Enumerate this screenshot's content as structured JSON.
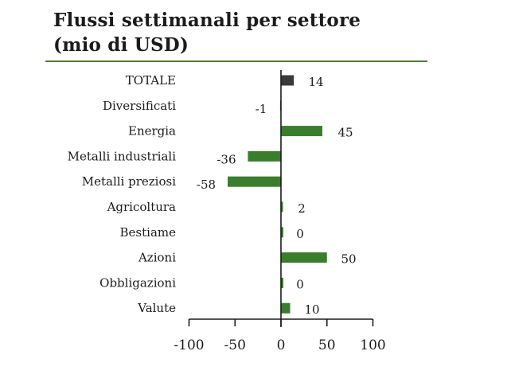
{
  "title_lines": [
    "Flussi settimanali per settore",
    "(mio di USD)"
  ],
  "colors": {
    "positive_bar": "#3a7d2c",
    "negative_bar": "#3a7d2c",
    "total_bar": "#3a3a3a",
    "rule": "#4f7f38",
    "axis": "#1b1b1b"
  },
  "chart_data": {
    "type": "bar",
    "orientation": "horizontal",
    "title": "Flussi settimanali per settore (mio di USD)",
    "categories": [
      "TOTALE",
      "Diversificati",
      "Energia",
      "Metalli industriali",
      "Metalli preziosi",
      "Agricoltura",
      "Bestiame",
      "Azioni",
      "Obbligazioni",
      "Valute"
    ],
    "values": [
      14,
      -1,
      45,
      -36,
      -58,
      2,
      0,
      50,
      0,
      10
    ],
    "value_labels": [
      "14",
      "-1",
      "45",
      "-36",
      "-58",
      "2",
      "0",
      "50",
      "0",
      "10"
    ],
    "xlim": [
      -100,
      100
    ],
    "xticks": [
      -100,
      -50,
      0,
      50,
      100
    ],
    "xtick_labels": [
      "-100",
      "-50",
      "0",
      "50",
      "100"
    ],
    "grid": false,
    "legend": "none"
  }
}
